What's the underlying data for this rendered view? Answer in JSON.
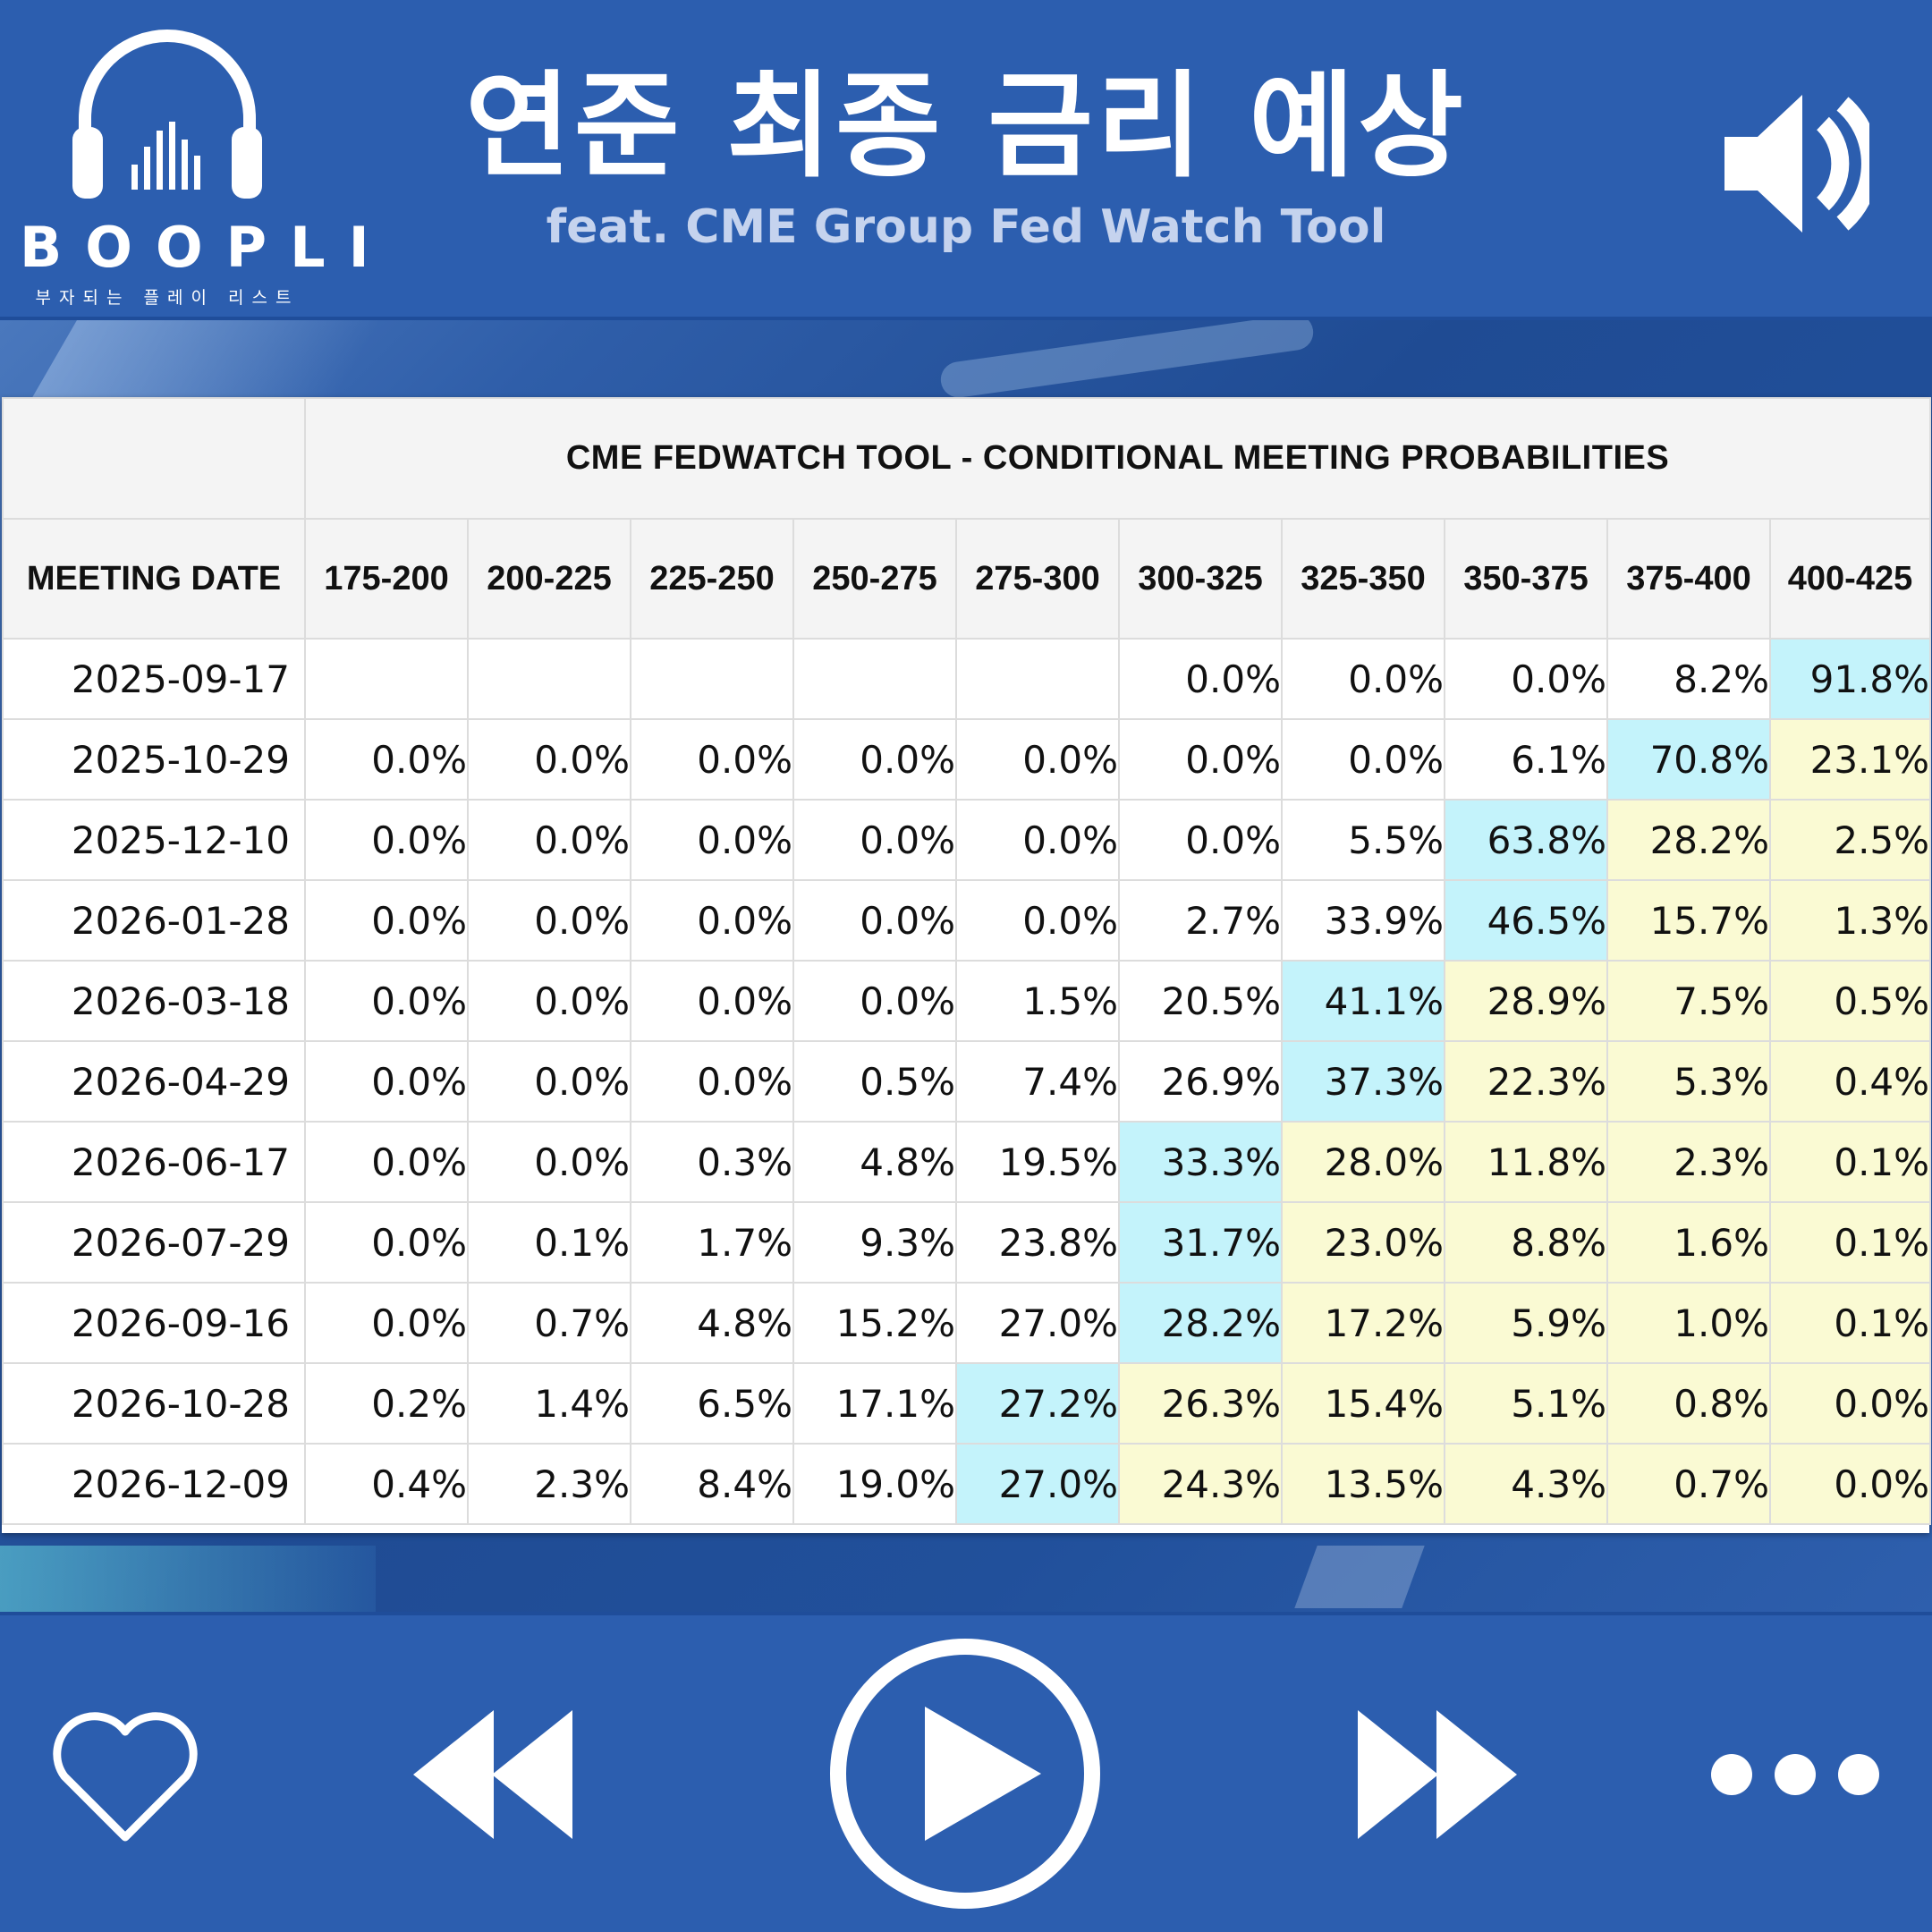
{
  "brand": {
    "name": "BOOPLI",
    "tagline": "부자되는 플레이 리스트"
  },
  "header": {
    "title": "연준 최종 금리 예상",
    "subtitle": "feat. CME Group Fed Watch Tool"
  },
  "table": {
    "caption": "CME FEDWATCH TOOL - CONDITIONAL MEETING PROBABILITIES",
    "date_header": "MEETING DATE",
    "ranges": [
      "175-200",
      "200-225",
      "225-250",
      "250-275",
      "275-300",
      "300-325",
      "325-350",
      "350-375",
      "375-400",
      "400-425"
    ],
    "rows": [
      {
        "date": "2025-09-17",
        "values": [
          "",
          "",
          "",
          "",
          "",
          "0.0%",
          "0.0%",
          "0.0%",
          "8.2%",
          "91.8%"
        ]
      },
      {
        "date": "2025-10-29",
        "values": [
          "0.0%",
          "0.0%",
          "0.0%",
          "0.0%",
          "0.0%",
          "0.0%",
          "0.0%",
          "6.1%",
          "70.8%",
          "23.1%"
        ]
      },
      {
        "date": "2025-12-10",
        "values": [
          "0.0%",
          "0.0%",
          "0.0%",
          "0.0%",
          "0.0%",
          "0.0%",
          "5.5%",
          "63.8%",
          "28.2%",
          "2.5%"
        ]
      },
      {
        "date": "2026-01-28",
        "values": [
          "0.0%",
          "0.0%",
          "0.0%",
          "0.0%",
          "0.0%",
          "2.7%",
          "33.9%",
          "46.5%",
          "15.7%",
          "1.3%"
        ]
      },
      {
        "date": "2026-03-18",
        "values": [
          "0.0%",
          "0.0%",
          "0.0%",
          "0.0%",
          "1.5%",
          "20.5%",
          "41.1%",
          "28.9%",
          "7.5%",
          "0.5%"
        ]
      },
      {
        "date": "2026-04-29",
        "values": [
          "0.0%",
          "0.0%",
          "0.0%",
          "0.5%",
          "7.4%",
          "26.9%",
          "37.3%",
          "22.3%",
          "5.3%",
          "0.4%"
        ]
      },
      {
        "date": "2026-06-17",
        "values": [
          "0.0%",
          "0.0%",
          "0.3%",
          "4.8%",
          "19.5%",
          "33.3%",
          "28.0%",
          "11.8%",
          "2.3%",
          "0.1%"
        ]
      },
      {
        "date": "2026-07-29",
        "values": [
          "0.0%",
          "0.1%",
          "1.7%",
          "9.3%",
          "23.8%",
          "31.7%",
          "23.0%",
          "8.8%",
          "1.6%",
          "0.1%"
        ]
      },
      {
        "date": "2026-09-16",
        "values": [
          "0.0%",
          "0.7%",
          "4.8%",
          "15.2%",
          "27.0%",
          "28.2%",
          "17.2%",
          "5.9%",
          "1.0%",
          "0.1%"
        ]
      },
      {
        "date": "2026-10-28",
        "values": [
          "0.2%",
          "1.4%",
          "6.5%",
          "17.1%",
          "27.2%",
          "26.3%",
          "15.4%",
          "5.1%",
          "0.8%",
          "0.0%"
        ]
      },
      {
        "date": "2026-12-09",
        "values": [
          "0.4%",
          "2.3%",
          "8.4%",
          "19.0%",
          "27.0%",
          "24.3%",
          "13.5%",
          "4.3%",
          "0.7%",
          "0.0%"
        ]
      }
    ],
    "peak_index": [
      9,
      8,
      7,
      7,
      6,
      6,
      5,
      5,
      5,
      4,
      4
    ],
    "colors": {
      "peak": "#c4f3fb",
      "above_peak": "#fafad3",
      "normal": "#ffffff"
    }
  },
  "player": {
    "icons": [
      "heart-icon",
      "rewind-icon",
      "play-icon",
      "fast-forward-icon",
      "more-icon"
    ]
  },
  "colors": {
    "brand_blue": "#2c5eaf",
    "text_on_blue": "#ffffff",
    "subtitle": "#c5d3ee"
  }
}
